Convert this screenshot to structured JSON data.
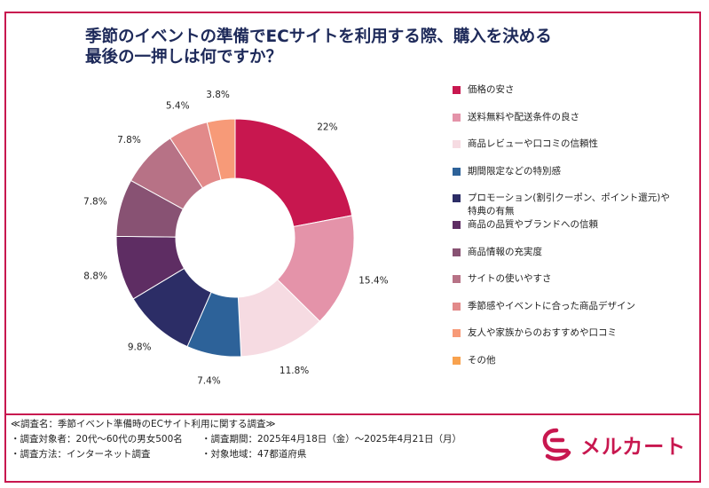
{
  "title_lines": [
    "季節のイベントの準備でECサイトを利用する際、購入を決める",
    "最後の一押しは何ですか？"
  ],
  "chart_data": {
    "type": "pie",
    "donut": true,
    "title": "季節のイベントの準備でECサイトを利用する際、購入を決める最後の一押しは何ですか？",
    "legend_position": "right",
    "categories": [
      "価格の安さ",
      "送料無料や配送条件の良さ",
      "商品レビューや口コミの信頼性",
      "期間限定などの特別感",
      "プロモーション(割引クーポン、ポイント還元)や\n特典の有無",
      "商品の品質やブランドへの信頼",
      "商品情報の充実度",
      "サイトの使いやすさ",
      "季節感やイベントに合った商品デザイン",
      "友人や家族からのおすすめや口コミ",
      "その他"
    ],
    "values": [
      22,
      15.4,
      11.8,
      7.4,
      9.8,
      8.8,
      7.8,
      7.8,
      5.4,
      3.8,
      0
    ],
    "labels": [
      "22%",
      "15.4%",
      "11.8%",
      "7.4%",
      "9.8%",
      "8.8%",
      "7.8%",
      "7.8%",
      "5.4%",
      "3.8%",
      ""
    ],
    "colors": [
      "#c8174f",
      "#e493a9",
      "#f6dbe2",
      "#2d6299",
      "#2c2d66",
      "#5e2d63",
      "#885273",
      "#b77286",
      "#e28a8a",
      "#f79a78",
      "#f8a24e"
    ]
  },
  "footer": {
    "survey_name": "≪調査名：季節イベント準備時のECサイト利用に関する調査≫",
    "target": "・調査対象者：20代～60代の男女500名",
    "period": "・調査期間：2025年4月18日（金）～2025年4月21日（月）",
    "method": "・調査方法：インターネット調査",
    "region": "・対象地域：47都道府県"
  },
  "logo": {
    "text": "メルカート",
    "color": "#c8174f"
  }
}
